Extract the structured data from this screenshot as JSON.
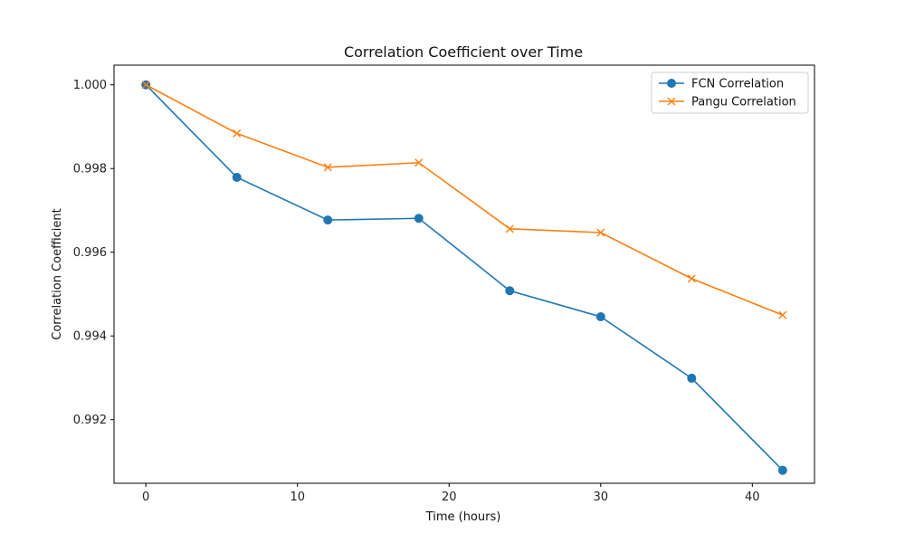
{
  "chart_data": {
    "type": "line",
    "title": "Correlation Coefficient over Time",
    "xlabel": "Time (hours)",
    "ylabel": "Correlation Coefficient",
    "x": [
      0,
      6,
      12,
      18,
      24,
      30,
      36,
      42
    ],
    "xlim": [
      -2.1,
      44.1
    ],
    "ylim": [
      0.99048,
      1.00047
    ],
    "xticks": [
      0,
      10,
      20,
      30,
      40
    ],
    "xtick_labels": [
      "0",
      "10",
      "20",
      "30",
      "40"
    ],
    "yticks": [
      0.992,
      0.994,
      0.996,
      0.998,
      1.0
    ],
    "ytick_labels": [
      "0.992",
      "0.994",
      "0.996",
      "0.998",
      "1.000"
    ],
    "grid": false,
    "legend_position": "top-right",
    "series": [
      {
        "name": "FCN Correlation",
        "marker": "circle",
        "color": "#1f77b4",
        "values": [
          1.0,
          0.99779,
          0.99677,
          0.99681,
          0.99508,
          0.99446,
          0.99299,
          0.99079
        ]
      },
      {
        "name": "Pangu Correlation",
        "marker": "x",
        "color": "#ff7f0e",
        "values": [
          1.0,
          0.99884,
          0.99803,
          0.99814,
          0.99656,
          0.99647,
          0.99537,
          0.9945
        ]
      }
    ]
  }
}
